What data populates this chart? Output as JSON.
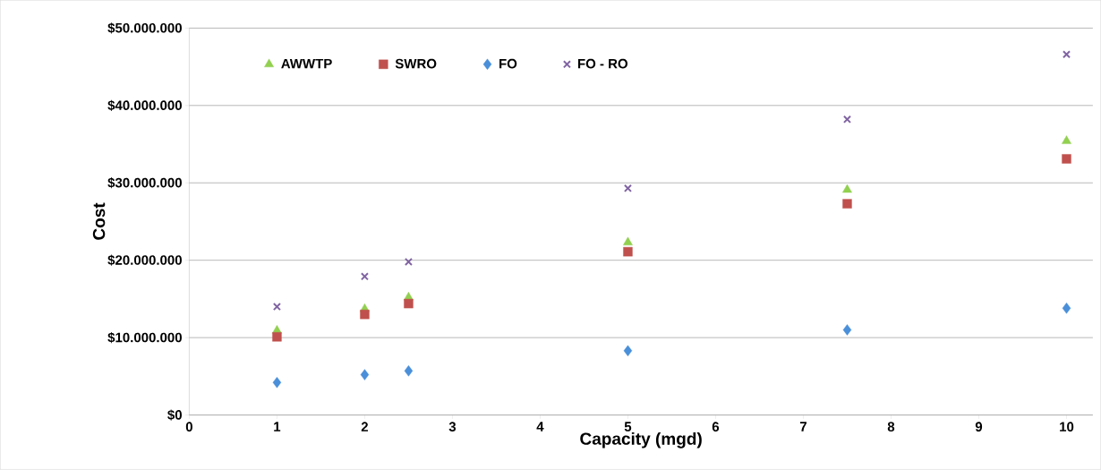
{
  "chart_data": {
    "type": "scatter",
    "xlabel": "Capacity (mgd)",
    "ylabel": "Cost",
    "xlim": [
      0,
      10.3
    ],
    "xticks": [
      0,
      1,
      2,
      3,
      4,
      5,
      6,
      7,
      8,
      9,
      10
    ],
    "ylim": [
      0,
      50000000
    ],
    "yticks": [
      {
        "value": 0,
        "label": "$0"
      },
      {
        "value": 10000000,
        "label": "$10.000.000"
      },
      {
        "value": 20000000,
        "label": "$20.000.000"
      },
      {
        "value": 30000000,
        "label": "$30.000.000"
      },
      {
        "value": 40000000,
        "label": "$40.000.000"
      },
      {
        "value": 50000000,
        "label": "$50.000.000"
      }
    ],
    "grid": "y",
    "legend": "top",
    "x": [
      1,
      2,
      2.5,
      5,
      7.5,
      10
    ],
    "series": [
      {
        "name": "AWWTP",
        "color": "#92d050",
        "marker": "triangle",
        "values": [
          10900000,
          13700000,
          15200000,
          22300000,
          29100000,
          35400000
        ]
      },
      {
        "name": "SWRO",
        "color": "#c0504d",
        "marker": "square",
        "values": [
          10100000,
          13000000,
          14400000,
          21100000,
          27300000,
          33100000
        ]
      },
      {
        "name": "FO",
        "color": "#4a8fd9",
        "marker": "diamond",
        "values": [
          4200000,
          5200000,
          5700000,
          8300000,
          11000000,
          13800000
        ]
      },
      {
        "name": "FO - RO",
        "color": "#8064a2",
        "marker": "cross",
        "values": [
          14000000,
          17900000,
          19800000,
          29300000,
          38200000,
          46600000
        ]
      }
    ]
  }
}
